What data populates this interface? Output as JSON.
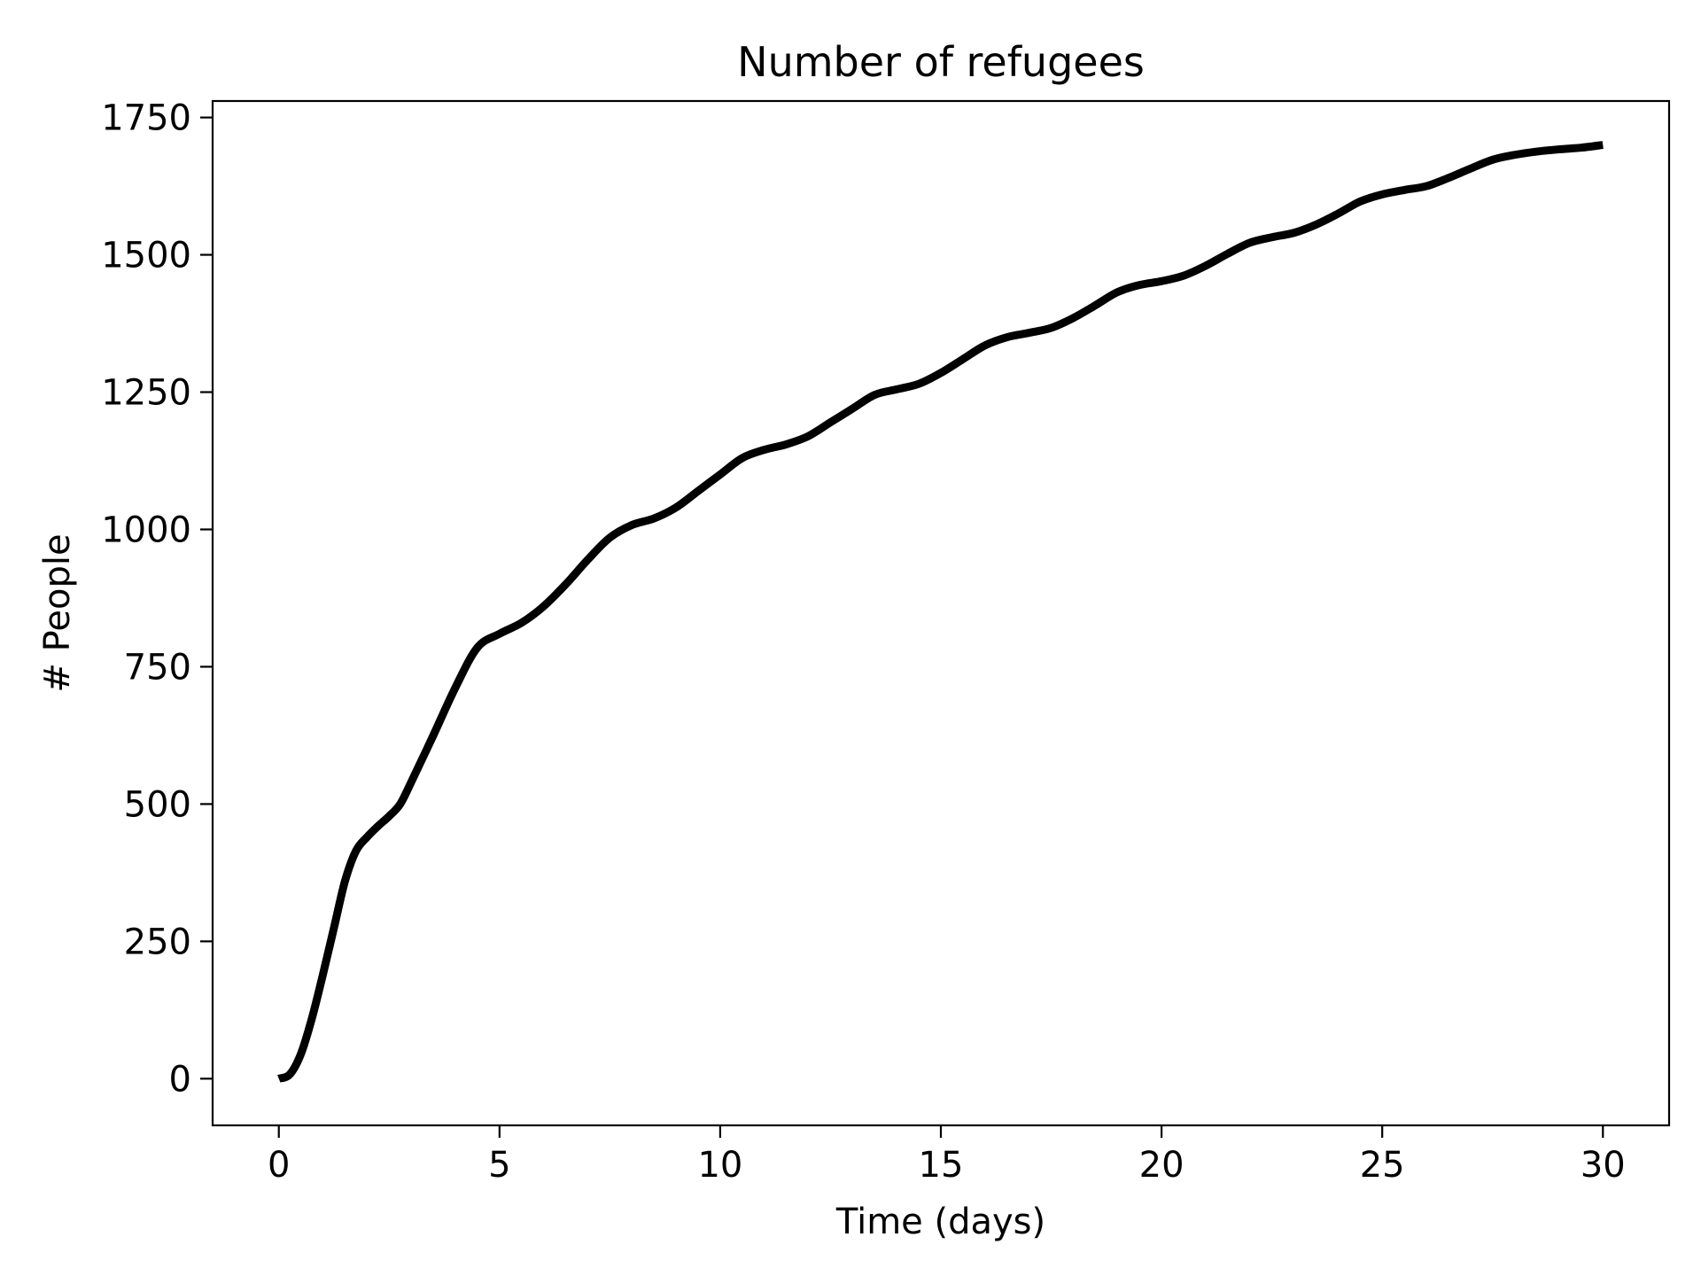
{
  "chart_data": {
    "type": "line",
    "title": "Number of refugees",
    "xlabel": "Time (days)",
    "ylabel": "# People",
    "xlim": [
      -1.5,
      31.5
    ],
    "ylim": [
      -85,
      1780
    ],
    "xticks": [
      0,
      5,
      10,
      15,
      20,
      25,
      30
    ],
    "yticks": [
      0,
      250,
      500,
      750,
      1000,
      1250,
      1500,
      1750
    ],
    "grid": false,
    "legend": "none",
    "series": [
      {
        "color": "#000000",
        "x": [
          0,
          0.25,
          0.5,
          0.75,
          1.0,
          1.25,
          1.5,
          1.75,
          2.0,
          2.25,
          2.5,
          2.75,
          3.0,
          3.5,
          4.0,
          4.5,
          5.0,
          5.5,
          6.0,
          6.5,
          7.0,
          7.5,
          8.0,
          8.5,
          9.0,
          9.5,
          10.0,
          10.5,
          11.0,
          11.5,
          12.0,
          12.5,
          13.0,
          13.5,
          14.0,
          14.5,
          15.0,
          15.5,
          16.0,
          16.5,
          17.0,
          17.5,
          18.0,
          18.5,
          19.0,
          19.5,
          20.0,
          20.5,
          21.0,
          21.5,
          22.0,
          22.5,
          23.0,
          23.5,
          24.0,
          24.5,
          25.0,
          25.5,
          26.0,
          26.5,
          27.0,
          27.5,
          28.0,
          28.5,
          29.0,
          29.5,
          30.0
        ],
        "y": [
          0,
          8,
          45,
          110,
          190,
          275,
          360,
          415,
          440,
          460,
          478,
          500,
          540,
          625,
          712,
          785,
          810,
          830,
          860,
          900,
          945,
          985,
          1008,
          1020,
          1040,
          1070,
          1100,
          1130,
          1145,
          1155,
          1170,
          1195,
          1220,
          1245,
          1255,
          1265,
          1285,
          1310,
          1335,
          1350,
          1358,
          1367,
          1385,
          1408,
          1432,
          1445,
          1452,
          1462,
          1480,
          1502,
          1522,
          1532,
          1540,
          1555,
          1575,
          1597,
          1610,
          1618,
          1625,
          1640,
          1657,
          1673,
          1682,
          1688,
          1692,
          1695,
          1700
        ]
      }
    ]
  }
}
